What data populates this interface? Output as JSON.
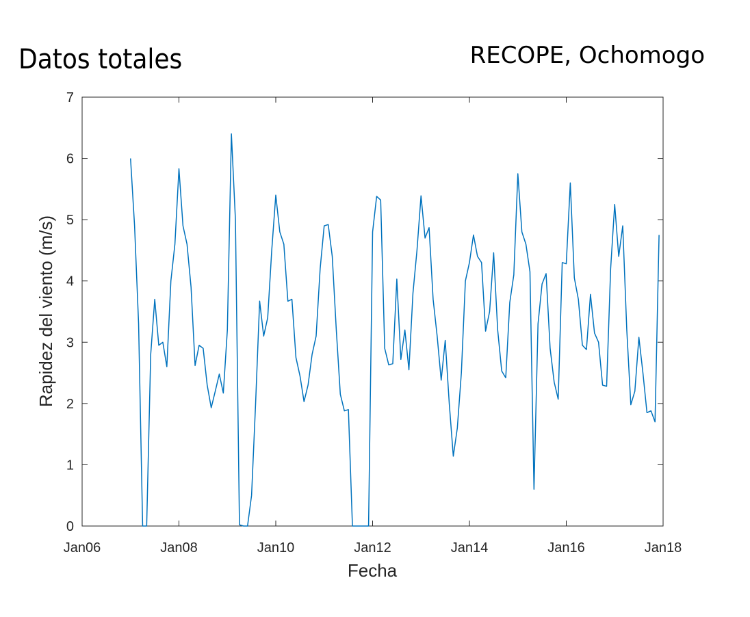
{
  "chart_data": {
    "type": "line",
    "title": "Datos totales",
    "subtitle": "RECOPE, Ochomogo",
    "xlabel": "Fecha",
    "ylabel": "Rapidez del viento (m/s)",
    "x": [
      "2007-01",
      "2007-02",
      "2007-03",
      "2007-04",
      "2007-05",
      "2007-06",
      "2007-07",
      "2007-08",
      "2007-09",
      "2007-10",
      "2007-11",
      "2007-12",
      "2008-01",
      "2008-02",
      "2008-03",
      "2008-04",
      "2008-05",
      "2008-06",
      "2008-07",
      "2008-08",
      "2008-09",
      "2008-10",
      "2008-11",
      "2008-12",
      "2009-01",
      "2009-02",
      "2009-03",
      "2009-04",
      "2009-05",
      "2009-06",
      "2009-07",
      "2009-08",
      "2009-09",
      "2009-10",
      "2009-11",
      "2009-12",
      "2010-01",
      "2010-02",
      "2010-03",
      "2010-04",
      "2010-05",
      "2010-06",
      "2010-07",
      "2010-08",
      "2010-09",
      "2010-10",
      "2010-11",
      "2010-12",
      "2011-01",
      "2011-02",
      "2011-03",
      "2011-04",
      "2011-05",
      "2011-06",
      "2011-07",
      "2011-08",
      "2011-09",
      "2011-10",
      "2011-11",
      "2011-12",
      "2012-01",
      "2012-02",
      "2012-03",
      "2012-04",
      "2012-05",
      "2012-06",
      "2012-07",
      "2012-08",
      "2012-09",
      "2012-10",
      "2012-11",
      "2012-12",
      "2013-01",
      "2013-02",
      "2013-03",
      "2013-04",
      "2013-05",
      "2013-06",
      "2013-07",
      "2013-08",
      "2013-09",
      "2013-10",
      "2013-11",
      "2013-12",
      "2014-01",
      "2014-02",
      "2014-03",
      "2014-04",
      "2014-05",
      "2014-06",
      "2014-07",
      "2014-08",
      "2014-09",
      "2014-10",
      "2014-11",
      "2014-12",
      "2015-01",
      "2015-02",
      "2015-03",
      "2015-04",
      "2015-05",
      "2015-06",
      "2015-07",
      "2015-08",
      "2015-09",
      "2015-10",
      "2015-11",
      "2015-12",
      "2016-01",
      "2016-02",
      "2016-03",
      "2016-04",
      "2016-05",
      "2016-06",
      "2016-07",
      "2016-08",
      "2016-09",
      "2016-10",
      "2016-11",
      "2016-12",
      "2017-01",
      "2017-02",
      "2017-03",
      "2017-04",
      "2017-05",
      "2017-06",
      "2017-07",
      "2017-08",
      "2017-09",
      "2017-10",
      "2017-11",
      "2017-12"
    ],
    "series": [
      {
        "color": "#0072bd",
        "values": [
          6.0,
          4.9,
          3.3,
          0,
          0,
          2.8,
          3.7,
          2.95,
          3.0,
          2.6,
          4.0,
          4.6,
          5.83,
          4.9,
          4.6,
          3.9,
          2.62,
          2.95,
          2.9,
          2.3,
          1.93,
          2.2,
          2.48,
          2.17,
          3.2,
          6.4,
          5.0,
          0.02,
          0,
          0,
          0.5,
          2.0,
          3.67,
          3.1,
          3.4,
          4.5,
          5.4,
          4.8,
          4.6,
          3.67,
          3.7,
          2.75,
          2.45,
          2.03,
          2.3,
          2.8,
          3.1,
          4.2,
          4.9,
          4.92,
          4.4,
          3.2,
          2.15,
          1.88,
          1.9,
          0,
          0,
          0,
          0,
          0,
          4.8,
          5.38,
          5.32,
          2.9,
          2.63,
          2.65,
          4.03,
          2.72,
          3.2,
          2.55,
          3.8,
          4.5,
          5.39,
          4.7,
          4.87,
          3.7,
          3.1,
          2.38,
          3.03,
          2.0,
          1.14,
          1.6,
          2.5,
          4.0,
          4.3,
          4.75,
          4.4,
          4.3,
          3.18,
          3.5,
          4.46,
          3.2,
          2.53,
          2.42,
          3.65,
          4.1,
          5.75,
          4.8,
          4.6,
          4.15,
          0.6,
          3.3,
          3.95,
          4.12,
          2.9,
          2.35,
          2.07,
          4.3,
          4.28,
          5.6,
          4.05,
          3.7,
          2.95,
          2.88,
          3.78,
          3.15,
          3.0,
          2.3,
          2.28,
          4.2,
          5.25,
          4.4,
          4.9,
          3.2,
          1.98,
          2.2,
          3.08,
          2.5,
          1.85,
          1.88,
          1.7,
          4.75
        ]
      }
    ],
    "xlim": [
      "2006-01",
      "2018-01"
    ],
    "xticks": [
      {
        "value": "2006-01",
        "label": "Jan06"
      },
      {
        "value": "2008-01",
        "label": "Jan08"
      },
      {
        "value": "2010-01",
        "label": "Jan10"
      },
      {
        "value": "2012-01",
        "label": "Jan12"
      },
      {
        "value": "2014-01",
        "label": "Jan14"
      },
      {
        "value": "2016-01",
        "label": "Jan16"
      },
      {
        "value": "2018-01",
        "label": "Jan18"
      }
    ],
    "ylim": [
      0,
      7
    ],
    "yticks": [
      0,
      1,
      2,
      3,
      4,
      5,
      6,
      7
    ],
    "grid": false
  }
}
